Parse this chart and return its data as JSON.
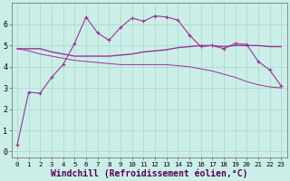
{
  "background_color": "#cceee8",
  "grid_color": "#aaddcc",
  "line_color": "#993399",
  "xlabel": "Windchill (Refroidissement éolien,°C)",
  "xlabel_fontsize": 7,
  "tick_fontsize": 6,
  "xlim": [
    -0.5,
    23.5
  ],
  "ylim": [
    -0.3,
    7.0
  ],
  "xticks": [
    0,
    1,
    2,
    3,
    4,
    5,
    6,
    7,
    8,
    9,
    10,
    11,
    12,
    13,
    14,
    15,
    16,
    17,
    18,
    19,
    20,
    21,
    22,
    23
  ],
  "yticks": [
    0,
    1,
    2,
    3,
    4,
    5,
    6
  ],
  "series1_x": [
    0,
    1,
    2,
    3,
    4,
    5,
    6,
    7,
    8,
    9,
    10,
    11,
    12,
    13,
    14,
    15,
    16,
    17,
    18,
    19,
    20,
    21,
    22,
    23
  ],
  "series1_y": [
    0.3,
    2.8,
    2.75,
    3.5,
    4.1,
    5.1,
    6.35,
    5.6,
    5.25,
    5.85,
    6.3,
    6.15,
    6.4,
    6.35,
    6.2,
    5.5,
    4.95,
    5.0,
    4.85,
    5.1,
    5.05,
    4.25,
    3.85,
    3.1
  ],
  "series2_x": [
    0,
    1,
    2,
    3,
    4,
    5,
    6,
    7,
    8,
    9,
    10,
    11,
    12,
    13,
    14,
    15,
    16,
    17,
    18,
    19,
    20,
    21,
    22,
    23
  ],
  "series2_y": [
    4.85,
    4.85,
    4.85,
    4.7,
    4.6,
    4.5,
    4.5,
    4.5,
    4.5,
    4.55,
    4.6,
    4.7,
    4.75,
    4.8,
    4.9,
    4.95,
    5.0,
    5.0,
    4.95,
    5.0,
    5.0,
    5.0,
    4.95,
    4.95
  ],
  "series3_x": [
    0,
    1,
    2,
    3,
    4,
    5,
    6,
    7,
    8,
    9,
    10,
    11,
    12,
    13,
    14,
    15,
    16,
    17,
    18,
    19,
    20,
    21,
    22,
    23
  ],
  "series3_y": [
    4.85,
    4.75,
    4.6,
    4.5,
    4.4,
    4.3,
    4.25,
    4.2,
    4.15,
    4.1,
    4.1,
    4.1,
    4.1,
    4.1,
    4.05,
    4.0,
    3.9,
    3.8,
    3.65,
    3.5,
    3.3,
    3.15,
    3.05,
    3.0
  ]
}
